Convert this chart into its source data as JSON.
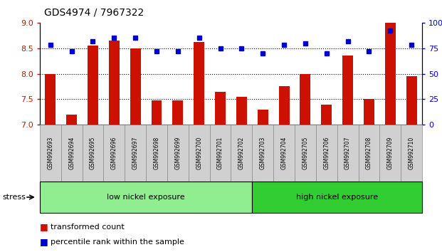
{
  "title": "GDS4974 / 7967322",
  "samples": [
    "GSM992693",
    "GSM992694",
    "GSM992695",
    "GSM992696",
    "GSM992697",
    "GSM992698",
    "GSM992699",
    "GSM992700",
    "GSM992701",
    "GSM992702",
    "GSM992703",
    "GSM992704",
    "GSM992705",
    "GSM992706",
    "GSM992707",
    "GSM992708",
    "GSM992709",
    "GSM992710"
  ],
  "bar_values": [
    8.0,
    7.2,
    8.55,
    8.65,
    8.5,
    7.48,
    7.48,
    8.62,
    7.65,
    7.55,
    7.3,
    7.75,
    8.0,
    7.4,
    8.35,
    7.5,
    9.0,
    7.95
  ],
  "dot_values": [
    78,
    72,
    82,
    85,
    85,
    72,
    72,
    85,
    75,
    75,
    70,
    78,
    80,
    70,
    82,
    72,
    92,
    78
  ],
  "ylim_left": [
    7,
    9
  ],
  "ylim_right": [
    0,
    100
  ],
  "yticks_left": [
    7,
    7.5,
    8,
    8.5,
    9
  ],
  "yticks_right": [
    0,
    25,
    50,
    75,
    100
  ],
  "bar_color": "#CC1100",
  "dot_color": "#0000CC",
  "group1_label": "low nickel exposure",
  "group2_label": "high nickel exposure",
  "group1_color": "#90EE90",
  "group2_color": "#32CD32",
  "n_low": 10,
  "n_high": 8,
  "n_samples": 18,
  "stress_label": "stress",
  "legend1": "transformed count",
  "legend2": "percentile rank within the sample",
  "hgrid_vals": [
    7.5,
    8.0,
    8.5
  ]
}
